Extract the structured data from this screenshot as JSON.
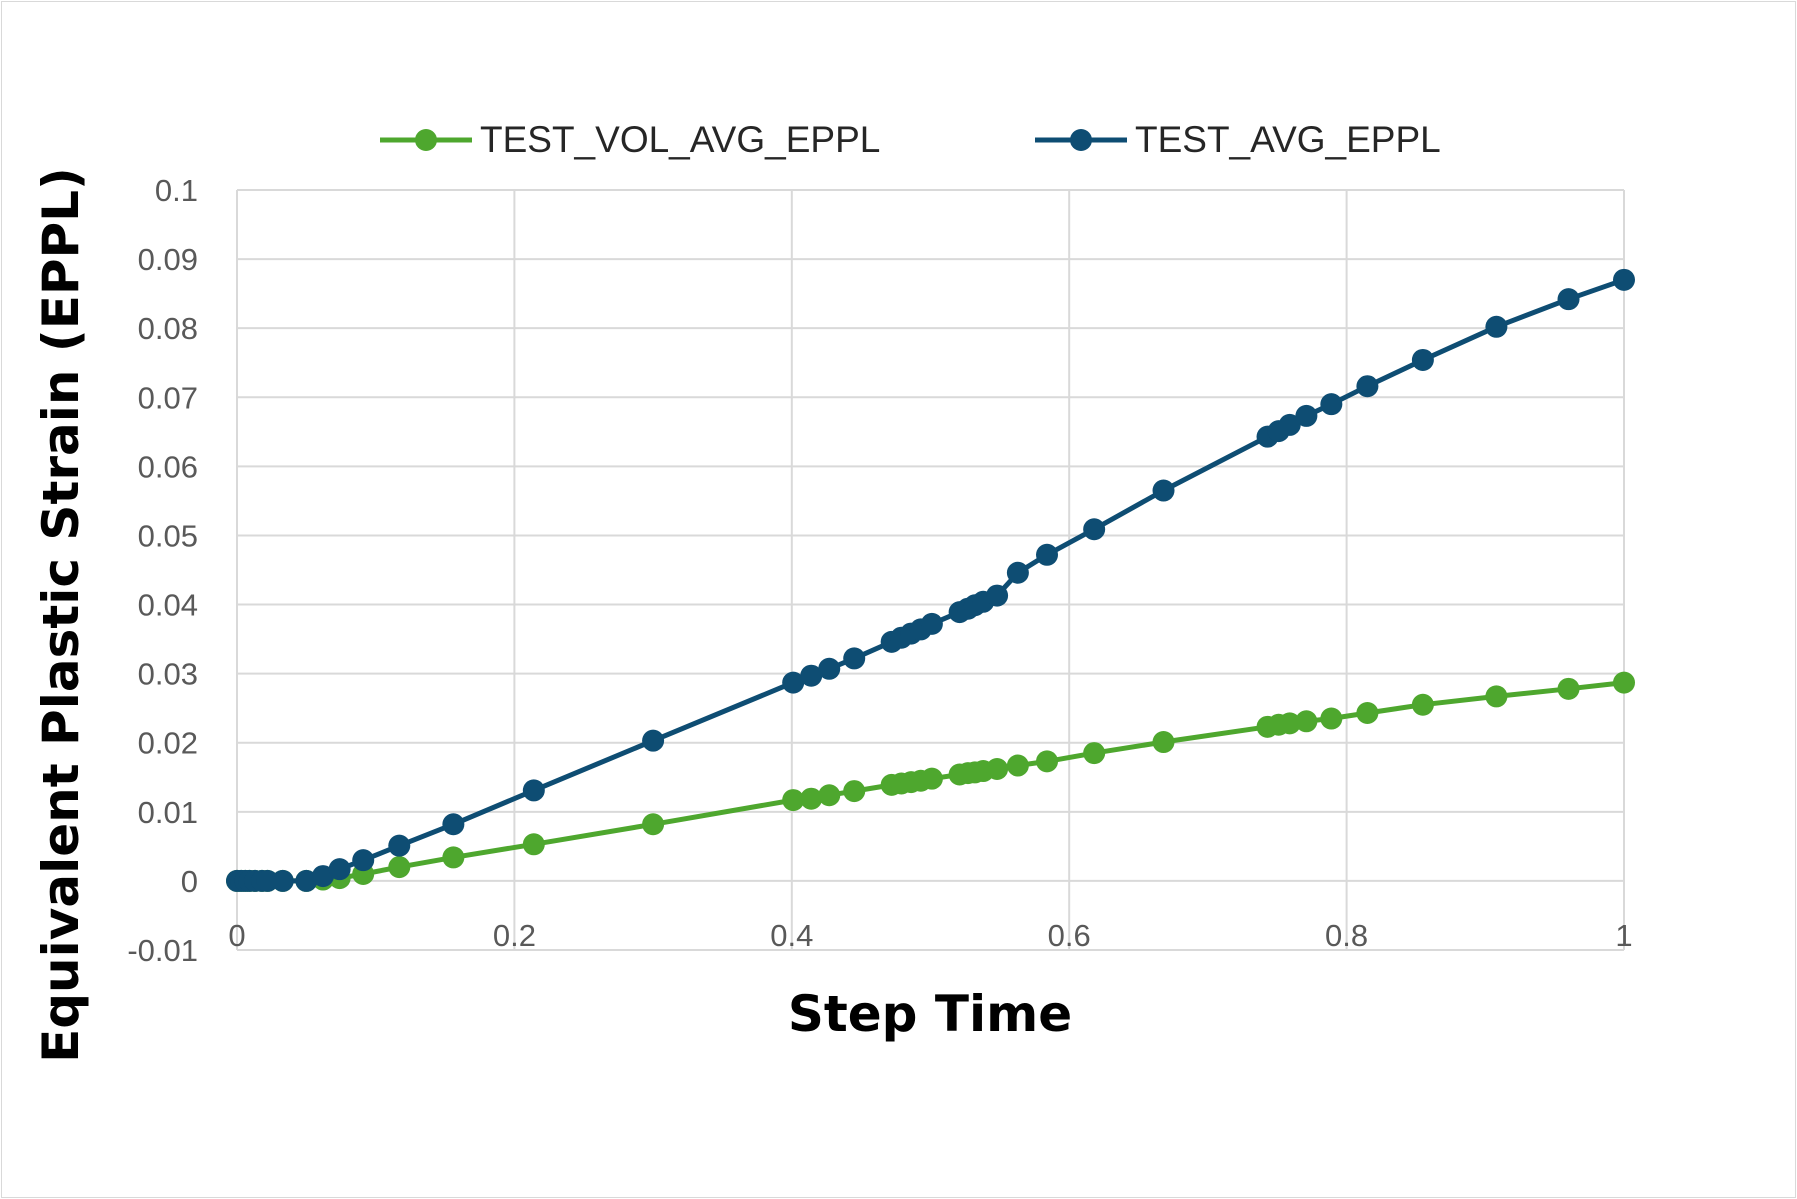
{
  "chart_data": {
    "type": "line",
    "title": "",
    "xlabel": "Step Time",
    "ylabel": "Equivalent Plastic Strain (EPPL)",
    "xlim": [
      0,
      1
    ],
    "ylim": [
      -0.01,
      0.1
    ],
    "x_ticks": [
      {
        "value": 0,
        "label": "0"
      },
      {
        "value": 0.2,
        "label": "0.2"
      },
      {
        "value": 0.4,
        "label": "0.4"
      },
      {
        "value": 0.6,
        "label": "0.6"
      },
      {
        "value": 0.8,
        "label": "0.8"
      },
      {
        "value": 1,
        "label": "1"
      }
    ],
    "y_ticks": [
      {
        "value": -0.01,
        "label": "-0.01"
      },
      {
        "value": 0,
        "label": "0"
      },
      {
        "value": 0.01,
        "label": "0.01"
      },
      {
        "value": 0.02,
        "label": "0.02"
      },
      {
        "value": 0.03,
        "label": "0.03"
      },
      {
        "value": 0.04,
        "label": "0.04"
      },
      {
        "value": 0.05,
        "label": "0.05"
      },
      {
        "value": 0.06,
        "label": "0.06"
      },
      {
        "value": 0.07,
        "label": "0.07"
      },
      {
        "value": 0.08,
        "label": "0.08"
      },
      {
        "value": 0.09,
        "label": "0.09"
      },
      {
        "value": 0.1,
        "label": "0.1"
      }
    ],
    "grid": true,
    "legend_position": "top",
    "series": [
      {
        "name": "TEST_VOL_AVG_EPPL",
        "color": "#4ea72e",
        "x": [
          0,
          0.003,
          0.006,
          0.009,
          0.013,
          0.018,
          0.022,
          0.033,
          0.05,
          0.062,
          0.074,
          0.091,
          0.117,
          0.156,
          0.214,
          0.3,
          0.401,
          0.414,
          0.427,
          0.445,
          0.472,
          0.479,
          0.486,
          0.493,
          0.501,
          0.521,
          0.527,
          0.532,
          0.538,
          0.548,
          0.563,
          0.584,
          0.618,
          0.668,
          0.743,
          0.751,
          0.759,
          0.771,
          0.789,
          0.815,
          0.855,
          0.908,
          0.96,
          1.0
        ],
        "y": [
          0,
          0,
          0,
          0,
          0,
          0,
          0,
          0,
          0,
          0.0002,
          0.0004,
          0.001,
          0.002,
          0.0034,
          0.0053,
          0.0082,
          0.0117,
          0.0119,
          0.0124,
          0.013,
          0.0139,
          0.0141,
          0.0143,
          0.0145,
          0.0148,
          0.0154,
          0.0156,
          0.0157,
          0.0159,
          0.0162,
          0.0167,
          0.0173,
          0.0185,
          0.0201,
          0.0223,
          0.0226,
          0.0228,
          0.0231,
          0.0235,
          0.0243,
          0.0255,
          0.0267,
          0.0278,
          0.0287
        ]
      },
      {
        "name": "TEST_AVG_EPPL",
        "color": "#0e4d73",
        "x": [
          0,
          0.003,
          0.006,
          0.009,
          0.013,
          0.018,
          0.022,
          0.033,
          0.05,
          0.062,
          0.074,
          0.091,
          0.117,
          0.156,
          0.214,
          0.3,
          0.401,
          0.414,
          0.427,
          0.445,
          0.472,
          0.479,
          0.486,
          0.493,
          0.501,
          0.521,
          0.527,
          0.532,
          0.538,
          0.548,
          0.563,
          0.584,
          0.618,
          0.668,
          0.743,
          0.751,
          0.759,
          0.771,
          0.789,
          0.815,
          0.855,
          0.908,
          0.96,
          1.0
        ],
        "y": [
          0,
          0,
          0,
          0,
          0,
          0,
          0,
          0,
          0,
          0.0007,
          0.0017,
          0.003,
          0.0051,
          0.0082,
          0.0131,
          0.0203,
          0.0287,
          0.0297,
          0.0307,
          0.0322,
          0.0346,
          0.0352,
          0.0358,
          0.0364,
          0.0372,
          0.0389,
          0.0394,
          0.0399,
          0.0404,
          0.0413,
          0.0446,
          0.0472,
          0.0509,
          0.0565,
          0.0643,
          0.0651,
          0.066,
          0.0673,
          0.069,
          0.0716,
          0.0754,
          0.0802,
          0.0842,
          0.087
        ]
      }
    ]
  }
}
